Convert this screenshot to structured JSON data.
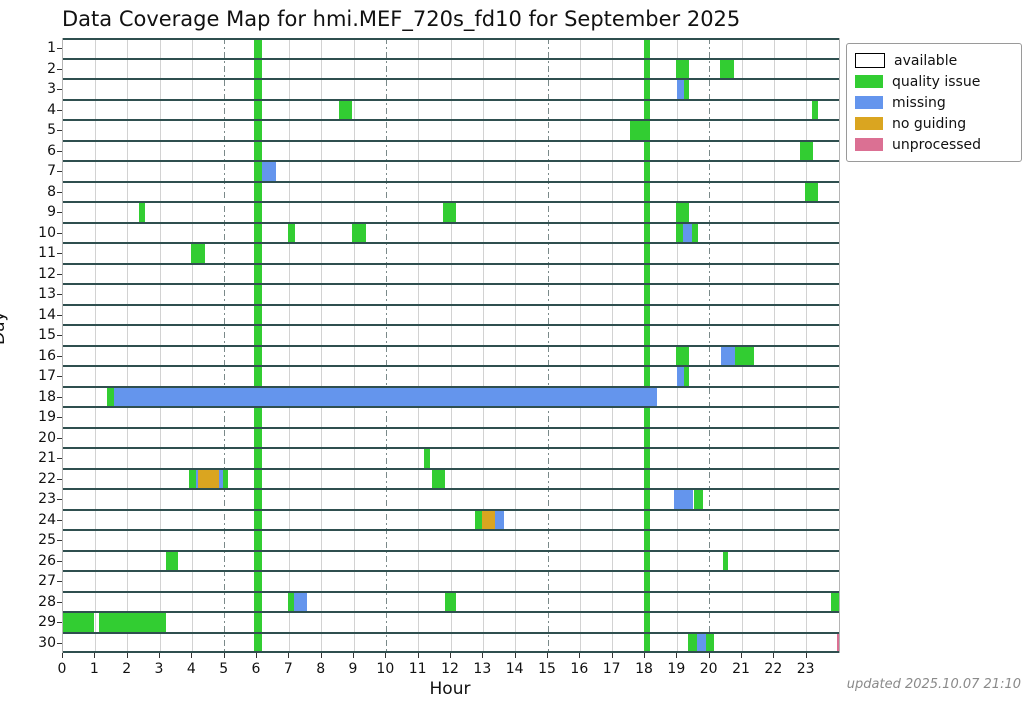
{
  "title": "Data Coverage Map for hmi.MEF_720s_fd10 for September 2025",
  "updated_note": "updated 2025.10.07 21:10",
  "colors": {
    "available": "#ffffff",
    "quality": "#32cd32",
    "missing": "#6495ed",
    "noguiding": "#daa520",
    "unprocessed": "#db7093",
    "row_separator": "#2f4f4f",
    "grid_minor": "#d2d2d2",
    "grid_major": "#7b8a8a"
  },
  "legend": [
    {
      "key": "available",
      "label": "available"
    },
    {
      "key": "quality",
      "label": "quality issue"
    },
    {
      "key": "missing",
      "label": "missing"
    },
    {
      "key": "noguiding",
      "label": "no guiding"
    },
    {
      "key": "unprocessed",
      "label": "unprocessed"
    }
  ],
  "chart_data": {
    "type": "heatmap",
    "title": "Data Coverage Map for hmi.MEF_720s_fd10 for September 2025",
    "xlabel": "Hour",
    "ylabel": "Day",
    "x_range": [
      0,
      24
    ],
    "x_ticks": [
      0,
      1,
      2,
      3,
      4,
      5,
      6,
      7,
      8,
      9,
      10,
      11,
      12,
      13,
      14,
      15,
      16,
      17,
      18,
      19,
      20,
      21,
      22,
      23
    ],
    "major_grid_hours": [
      5,
      10,
      15,
      20
    ],
    "y_days": [
      1,
      2,
      3,
      4,
      5,
      6,
      7,
      8,
      9,
      10,
      11,
      12,
      13,
      14,
      15,
      16,
      17,
      18,
      19,
      20,
      21,
      22,
      23,
      24,
      25,
      26,
      27,
      28,
      29,
      30
    ],
    "background_status": "available",
    "legend_position": "upper-right-outside",
    "days": [
      {
        "day": 1,
        "segments": [
          [
            5.92,
            6.15,
            "quality"
          ],
          [
            17.97,
            18.17,
            "quality"
          ]
        ]
      },
      {
        "day": 2,
        "segments": [
          [
            5.92,
            6.15,
            "quality"
          ],
          [
            17.97,
            18.17,
            "quality"
          ],
          [
            18.95,
            19.35,
            "quality"
          ],
          [
            20.33,
            20.74,
            "quality"
          ]
        ]
      },
      {
        "day": 3,
        "segments": [
          [
            5.92,
            6.15,
            "quality"
          ],
          [
            17.97,
            18.17,
            "quality"
          ],
          [
            18.98,
            19.22,
            "missing"
          ],
          [
            19.22,
            19.35,
            "quality"
          ]
        ]
      },
      {
        "day": 4,
        "segments": [
          [
            5.92,
            6.15,
            "quality"
          ],
          [
            8.55,
            8.95,
            "quality"
          ],
          [
            17.97,
            18.17,
            "quality"
          ],
          [
            23.15,
            23.35,
            "quality"
          ]
        ]
      },
      {
        "day": 5,
        "segments": [
          [
            5.92,
            6.15,
            "quality"
          ],
          [
            17.55,
            18.17,
            "quality"
          ]
        ]
      },
      {
        "day": 6,
        "segments": [
          [
            5.92,
            6.15,
            "quality"
          ],
          [
            17.97,
            18.17,
            "quality"
          ],
          [
            22.8,
            23.2,
            "quality"
          ]
        ]
      },
      {
        "day": 7,
        "segments": [
          [
            5.92,
            6.15,
            "quality"
          ],
          [
            6.15,
            6.58,
            "missing"
          ],
          [
            17.97,
            18.17,
            "quality"
          ]
        ]
      },
      {
        "day": 8,
        "segments": [
          [
            5.92,
            6.15,
            "quality"
          ],
          [
            17.97,
            18.17,
            "quality"
          ],
          [
            22.95,
            23.35,
            "quality"
          ]
        ]
      },
      {
        "day": 9,
        "segments": [
          [
            2.35,
            2.55,
            "quality"
          ],
          [
            5.92,
            6.15,
            "quality"
          ],
          [
            11.75,
            12.15,
            "quality"
          ],
          [
            17.97,
            18.17,
            "quality"
          ],
          [
            18.95,
            19.35,
            "quality"
          ]
        ]
      },
      {
        "day": 10,
        "segments": [
          [
            5.92,
            6.15,
            "quality"
          ],
          [
            6.95,
            7.17,
            "quality"
          ],
          [
            8.95,
            9.37,
            "quality"
          ],
          [
            17.97,
            18.17,
            "quality"
          ],
          [
            18.95,
            19.18,
            "quality"
          ],
          [
            19.18,
            19.45,
            "missing"
          ],
          [
            19.45,
            19.65,
            "quality"
          ]
        ]
      },
      {
        "day": 11,
        "segments": [
          [
            3.95,
            4.4,
            "quality"
          ],
          [
            5.92,
            6.15,
            "quality"
          ],
          [
            17.97,
            18.17,
            "quality"
          ]
        ]
      },
      {
        "day": 12,
        "segments": [
          [
            5.92,
            6.15,
            "quality"
          ],
          [
            17.97,
            18.17,
            "quality"
          ]
        ]
      },
      {
        "day": 13,
        "segments": [
          [
            5.92,
            6.15,
            "quality"
          ],
          [
            17.97,
            18.17,
            "quality"
          ]
        ]
      },
      {
        "day": 14,
        "segments": [
          [
            5.92,
            6.15,
            "quality"
          ],
          [
            17.97,
            18.17,
            "quality"
          ]
        ]
      },
      {
        "day": 15,
        "segments": [
          [
            5.92,
            6.15,
            "quality"
          ],
          [
            17.97,
            18.17,
            "quality"
          ]
        ]
      },
      {
        "day": 16,
        "segments": [
          [
            5.92,
            6.15,
            "quality"
          ],
          [
            17.97,
            18.17,
            "quality"
          ],
          [
            18.95,
            19.35,
            "quality"
          ],
          [
            20.36,
            20.77,
            "missing"
          ],
          [
            20.77,
            21.37,
            "quality"
          ]
        ]
      },
      {
        "day": 17,
        "segments": [
          [
            5.92,
            6.15,
            "quality"
          ],
          [
            17.97,
            18.17,
            "quality"
          ],
          [
            18.98,
            19.22,
            "missing"
          ],
          [
            19.22,
            19.35,
            "quality"
          ]
        ]
      },
      {
        "day": 18,
        "segments": [
          [
            1.35,
            1.58,
            "quality"
          ],
          [
            1.58,
            18.37,
            "missing"
          ]
        ]
      },
      {
        "day": 19,
        "segments": [
          [
            5.92,
            6.15,
            "quality"
          ],
          [
            17.97,
            18.17,
            "quality"
          ]
        ]
      },
      {
        "day": 20,
        "segments": [
          [
            5.92,
            6.15,
            "quality"
          ],
          [
            17.97,
            18.17,
            "quality"
          ]
        ]
      },
      {
        "day": 21,
        "segments": [
          [
            5.92,
            6.15,
            "quality"
          ],
          [
            11.15,
            11.35,
            "quality"
          ],
          [
            17.97,
            18.17,
            "quality"
          ]
        ]
      },
      {
        "day": 22,
        "segments": [
          [
            3.9,
            4.1,
            "quality"
          ],
          [
            4.1,
            4.18,
            "missing"
          ],
          [
            4.18,
            4.83,
            "noguiding"
          ],
          [
            4.83,
            4.95,
            "missing"
          ],
          [
            4.95,
            5.1,
            "quality"
          ],
          [
            5.92,
            6.15,
            "quality"
          ],
          [
            11.4,
            11.8,
            "quality"
          ],
          [
            17.97,
            18.17,
            "quality"
          ]
        ]
      },
      {
        "day": 23,
        "segments": [
          [
            5.92,
            6.15,
            "quality"
          ],
          [
            17.97,
            18.17,
            "quality"
          ],
          [
            18.9,
            19.5,
            "missing"
          ],
          [
            19.5,
            19.8,
            "quality"
          ]
        ]
      },
      {
        "day": 24,
        "segments": [
          [
            5.92,
            6.15,
            "quality"
          ],
          [
            12.75,
            12.97,
            "quality"
          ],
          [
            12.97,
            13.36,
            "noguiding"
          ],
          [
            13.36,
            13.65,
            "missing"
          ],
          [
            17.97,
            18.17,
            "quality"
          ]
        ]
      },
      {
        "day": 25,
        "segments": [
          [
            5.92,
            6.15,
            "quality"
          ],
          [
            17.97,
            18.17,
            "quality"
          ]
        ]
      },
      {
        "day": 26,
        "segments": [
          [
            3.2,
            3.55,
            "quality"
          ],
          [
            5.92,
            6.15,
            "quality"
          ],
          [
            17.97,
            18.17,
            "quality"
          ],
          [
            20.4,
            20.58,
            "quality"
          ]
        ]
      },
      {
        "day": 27,
        "segments": [
          [
            5.92,
            6.15,
            "quality"
          ],
          [
            17.97,
            18.17,
            "quality"
          ]
        ]
      },
      {
        "day": 28,
        "segments": [
          [
            5.92,
            6.15,
            "quality"
          ],
          [
            6.95,
            7.15,
            "quality"
          ],
          [
            7.15,
            7.55,
            "missing"
          ],
          [
            11.8,
            12.15,
            "quality"
          ],
          [
            17.97,
            18.17,
            "quality"
          ],
          [
            23.75,
            24,
            "quality"
          ]
        ]
      },
      {
        "day": 29,
        "segments": [
          [
            0,
            0.96,
            "quality"
          ],
          [
            1.11,
            3.18,
            "quality"
          ],
          [
            5.92,
            6.15,
            "quality"
          ],
          [
            17.97,
            18.17,
            "quality"
          ]
        ]
      },
      {
        "day": 30,
        "segments": [
          [
            5.92,
            6.15,
            "quality"
          ],
          [
            17.97,
            18.17,
            "quality"
          ],
          [
            19.33,
            19.6,
            "quality"
          ],
          [
            19.6,
            19.9,
            "missing"
          ],
          [
            19.9,
            20.14,
            "quality"
          ],
          [
            23.95,
            24,
            "unprocessed"
          ]
        ]
      }
    ]
  }
}
